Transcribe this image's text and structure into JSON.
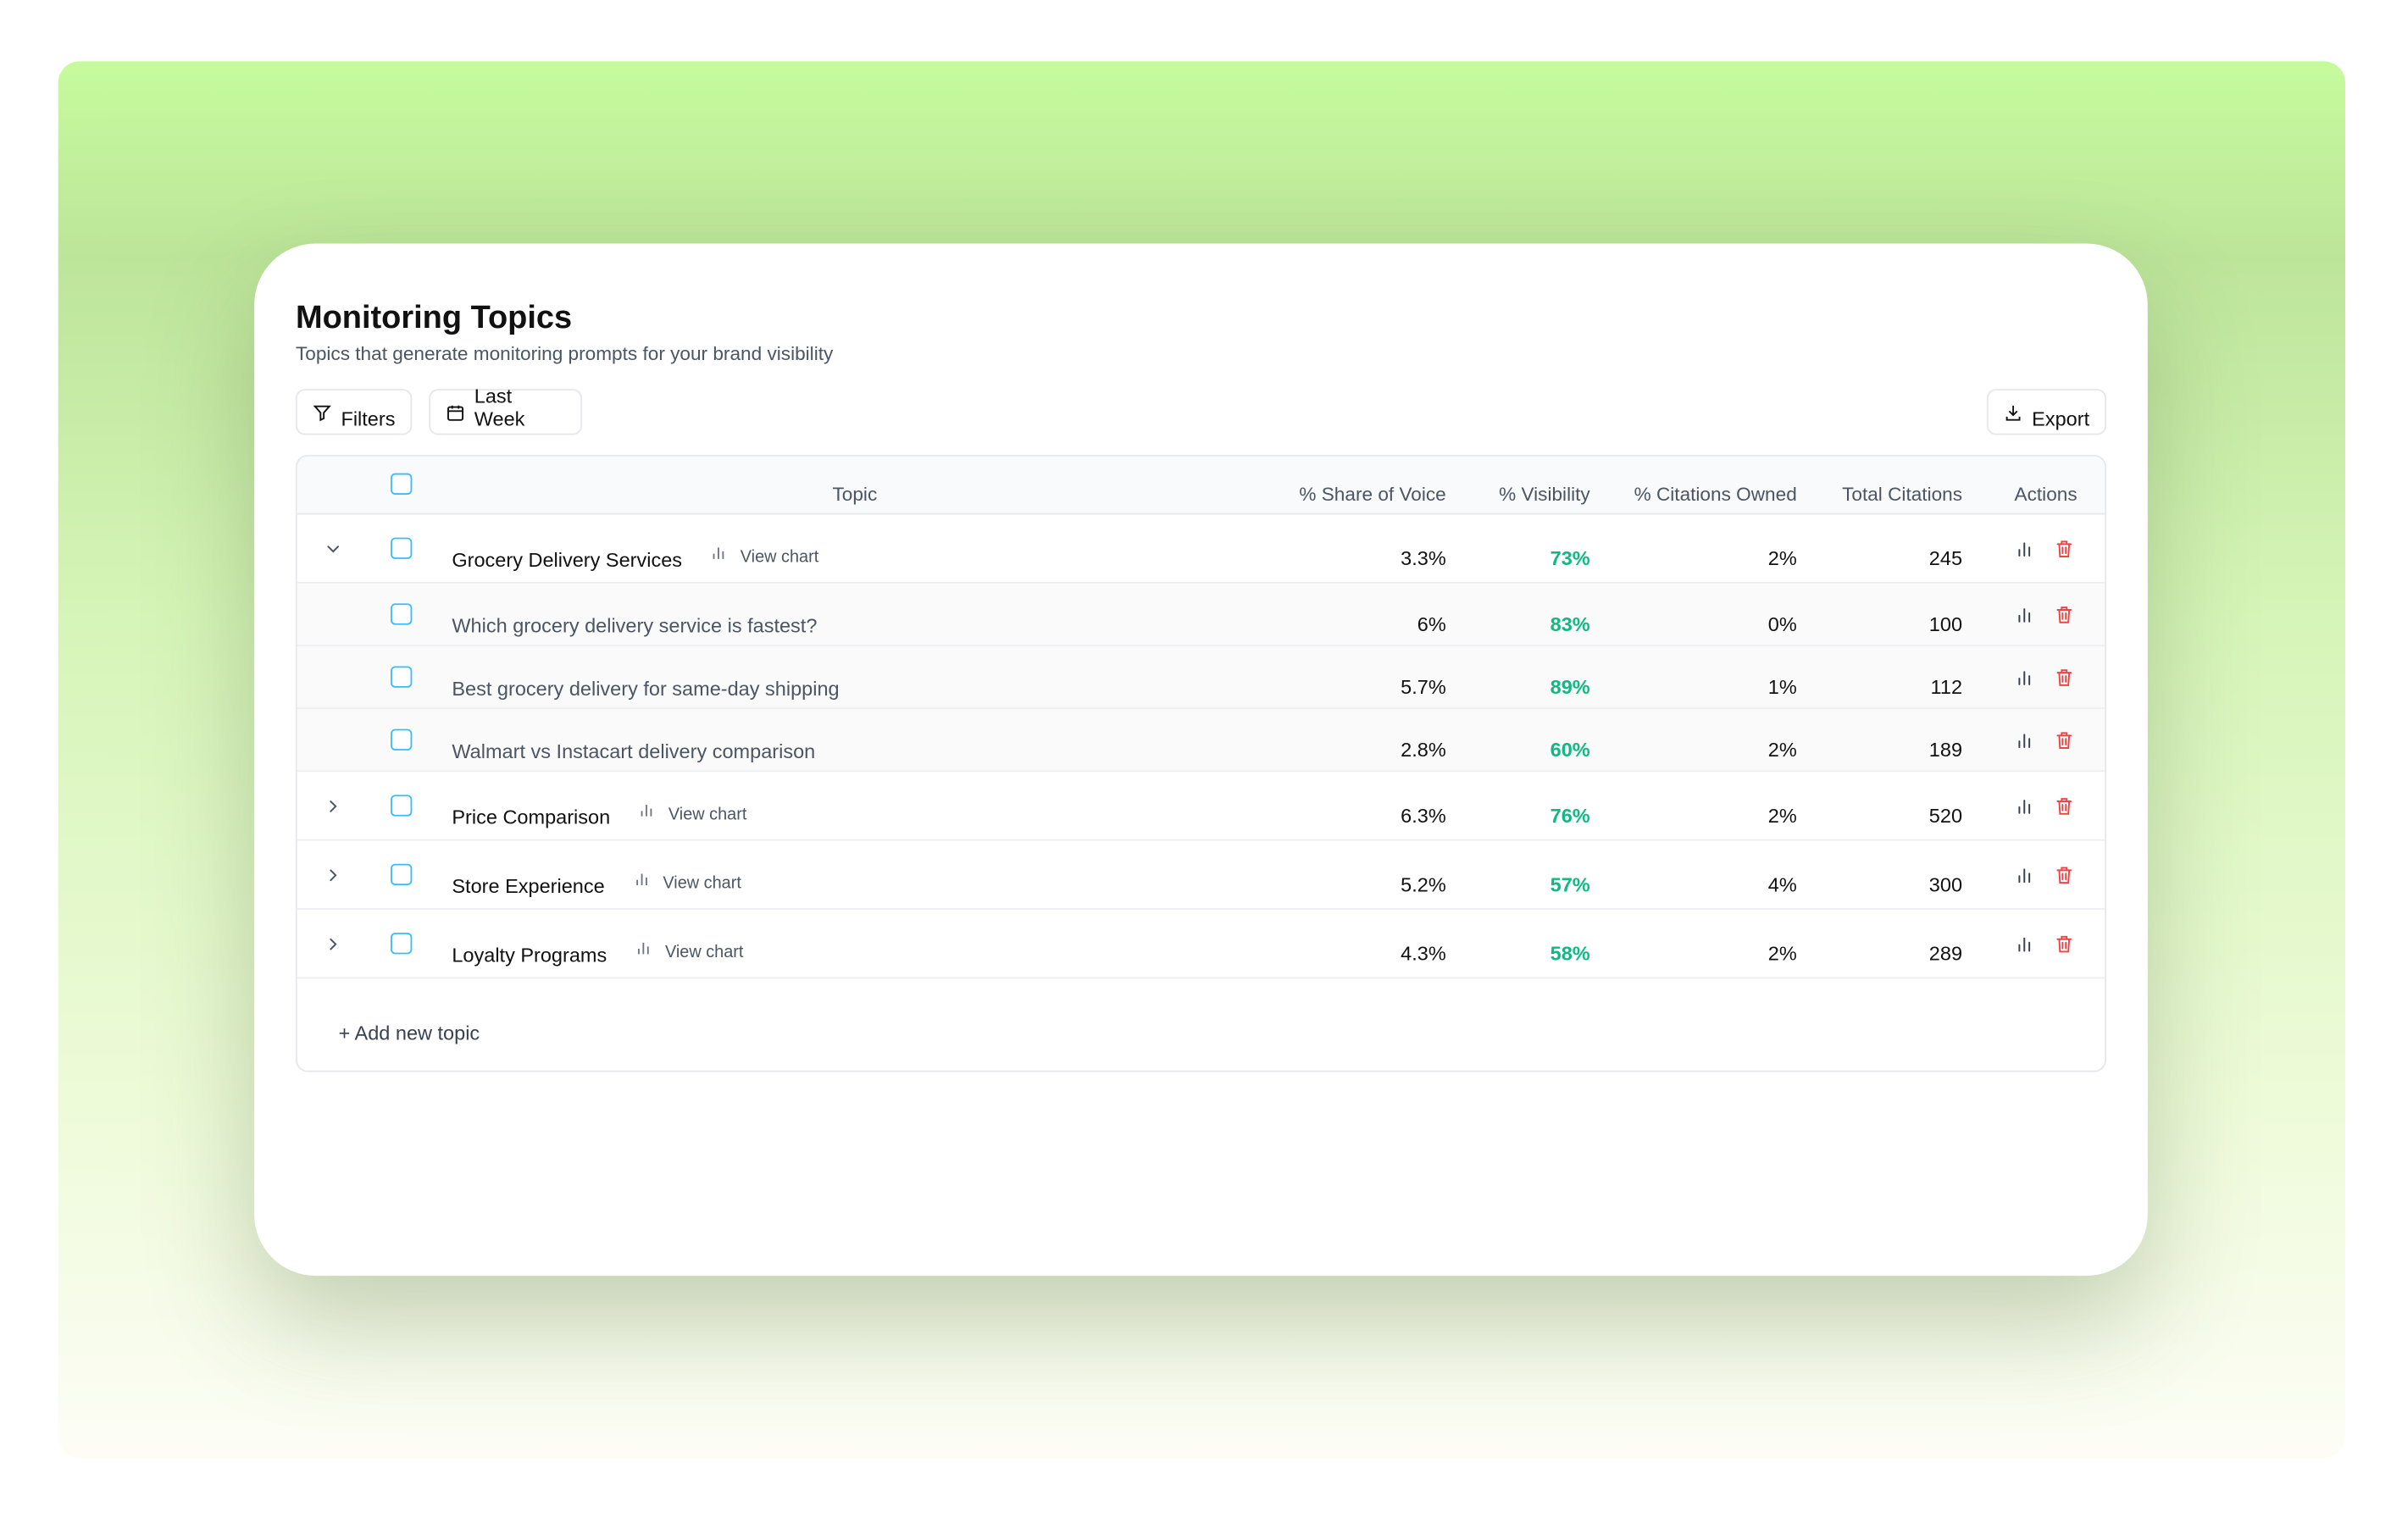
{
  "header": {
    "title": "Monitoring Topics",
    "subtitle": "Topics that generate monitoring prompts for your brand visibility"
  },
  "toolbar": {
    "filters": "Filters",
    "date_range": "Last Week",
    "export": "Export"
  },
  "table": {
    "columns": [
      "Topic",
      "% Share of Voice",
      "% Visibility",
      "% Citations Owned",
      "Total Citations",
      "Actions"
    ],
    "topics": [
      {
        "name": "Grocery Delivery Services",
        "view_chart": "View chart",
        "share_of_voice": "3.3%",
        "visibility": "73%",
        "citations_owned": "2%",
        "total_citations": "245",
        "expanded": true,
        "prompts": [
          {
            "name": "Which grocery delivery service is fastest?",
            "share_of_voice": "6%",
            "visibility": "83%",
            "citations_owned": "0%",
            "total_citations": "100"
          },
          {
            "name": "Best grocery delivery for same-day shipping",
            "share_of_voice": "5.7%",
            "visibility": "89%",
            "citations_owned": "1%",
            "total_citations": "112"
          },
          {
            "name": "Walmart vs Instacart delivery comparison",
            "share_of_voice": "2.8%",
            "visibility": "60%",
            "citations_owned": "2%",
            "total_citations": "189"
          }
        ]
      },
      {
        "name": "Price Comparison",
        "view_chart": "View chart",
        "share_of_voice": "6.3%",
        "visibility": "76%",
        "citations_owned": "2%",
        "total_citations": "520",
        "expanded": false
      },
      {
        "name": "Store Experience",
        "view_chart": "View chart",
        "share_of_voice": "5.2%",
        "visibility": "57%",
        "citations_owned": "4%",
        "total_citations": "300",
        "expanded": false
      },
      {
        "name": "Loyalty Programs",
        "view_chart": "View chart",
        "share_of_voice": "4.3%",
        "visibility": "58%",
        "citations_owned": "2%",
        "total_citations": "289",
        "expanded": false
      }
    ]
  },
  "footer": {
    "add_topic": "+ Add new topic"
  }
}
